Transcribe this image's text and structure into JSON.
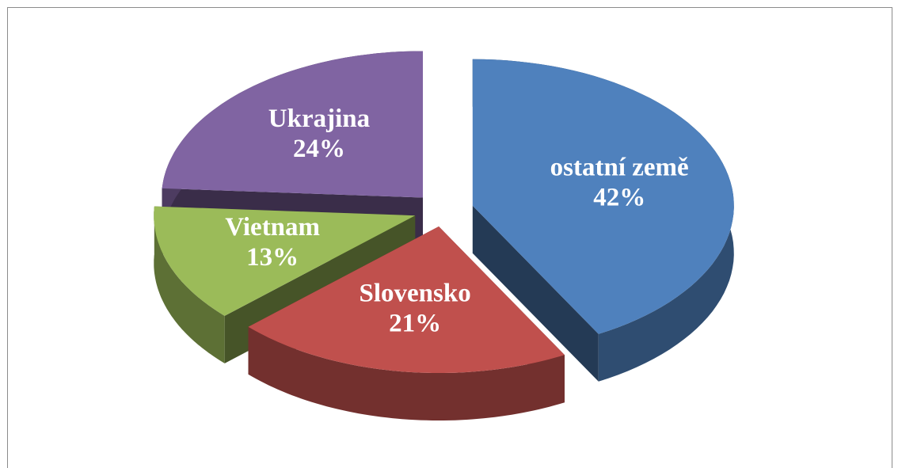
{
  "chart_data": {
    "type": "pie",
    "categories": [
      "ostatní země",
      "Slovensko",
      "Vietnam",
      "Ukrajina"
    ],
    "values": [
      42,
      21,
      13,
      24
    ],
    "value_labels": [
      "42%",
      "21%",
      "13%",
      "24%"
    ],
    "colors": [
      "#4f81bd",
      "#c0504d",
      "#9bbb59",
      "#8064a2"
    ]
  }
}
